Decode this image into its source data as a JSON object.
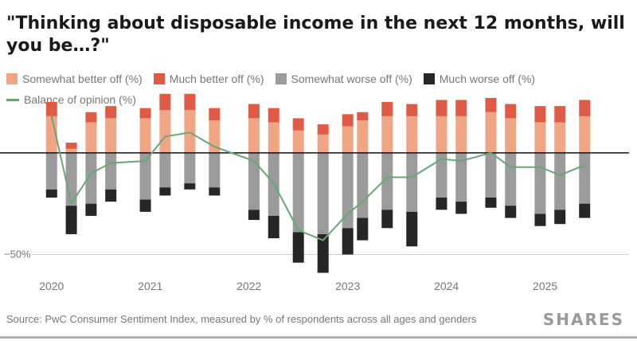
{
  "title": "\"Thinking about disposable income in the next 12 months, will you be…?\"",
  "legend": {
    "somewhat_better": "Somewhat better off (%)",
    "much_better": "Much better off (%)",
    "somewhat_worse": "Somewhat worse off (%)",
    "much_worse": "Much worse off (%)",
    "balance": "Balance of opinion (%)"
  },
  "colors": {
    "somewhat_better": "#f0a584",
    "much_better": "#e05b45",
    "somewhat_worse": "#9b9b9b",
    "much_worse": "#262626",
    "balance": "#6aa57a"
  },
  "source": "Source: PwC Consumer Sentiment Index, measured by % of respondents across all ages and genders",
  "brand": "SHARES",
  "chart_data": {
    "type": "bar",
    "stacked": true,
    "ylabel": "",
    "ylim": [
      -60,
      25
    ],
    "y_ticks": [
      {
        "value": -50,
        "label": "−50%"
      }
    ],
    "x_ticks": [
      {
        "x": 2020.0,
        "label": "2020"
      },
      {
        "x": 2021.0,
        "label": "2021"
      },
      {
        "x": 2022.0,
        "label": "2022"
      },
      {
        "x": 2023.0,
        "label": "2023"
      },
      {
        "x": 2024.0,
        "label": "2024"
      },
      {
        "x": 2025.0,
        "label": "2025"
      }
    ],
    "x_range": [
      2019.8,
      2025.85
    ],
    "x": [
      2020.0,
      2020.2,
      2020.4,
      2020.6,
      2020.95,
      2021.15,
      2021.4,
      2021.65,
      2022.05,
      2022.25,
      2022.5,
      2022.75,
      2023.0,
      2023.15,
      2023.4,
      2023.65,
      2023.95,
      2024.15,
      2024.45,
      2024.65,
      2024.95,
      2025.15,
      2025.4
    ],
    "series": [
      {
        "name": "Somewhat better off (%)",
        "values": [
          18,
          2,
          15,
          17,
          17,
          21,
          21,
          16,
          17,
          15,
          11,
          9,
          13,
          16,
          18,
          18,
          18,
          18,
          20,
          17,
          15,
          15,
          18
        ]
      },
      {
        "name": "Much better off (%)",
        "values": [
          7,
          3,
          5,
          6,
          5,
          8,
          8,
          6,
          7,
          7,
          6,
          5,
          6,
          4,
          7,
          6,
          8,
          8,
          7,
          7,
          8,
          8,
          8
        ]
      },
      {
        "name": "Somewhat worse off (%)",
        "values": [
          -18,
          -26,
          -25,
          -18,
          -23,
          -17,
          -15,
          -17,
          -28,
          -31,
          -39,
          -40,
          -37,
          -32,
          -28,
          -29,
          -22,
          -24,
          -22,
          -26,
          -30,
          -28,
          -25
        ]
      },
      {
        "name": "Much worse off (%)",
        "values": [
          -4,
          -14,
          -6,
          -6,
          -6,
          -4,
          -3,
          -4,
          -5,
          -11,
          -15,
          -19,
          -13,
          -11,
          -9,
          -17,
          -6,
          -6,
          -5,
          -6,
          -6,
          -7,
          -7
        ]
      },
      {
        "name": "Balance of opinion (%)",
        "type": "line",
        "values": [
          18,
          -25,
          -10,
          -5,
          -4,
          8,
          10,
          3,
          -4,
          -15,
          -38,
          -43,
          -30,
          -24,
          -12,
          -12,
          -3,
          -4,
          0,
          -7,
          -7,
          -11,
          -6
        ]
      }
    ]
  }
}
